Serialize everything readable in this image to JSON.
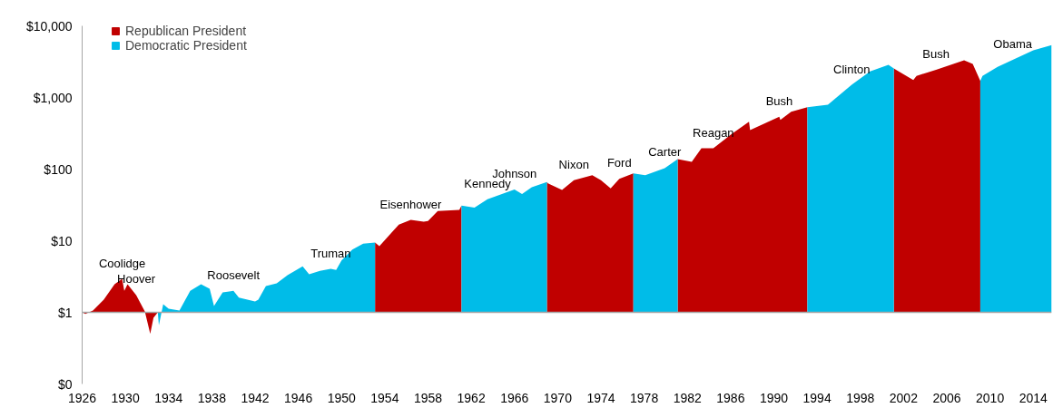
{
  "chart_data": {
    "type": "area",
    "log": "y",
    "grid": false,
    "legend": "top left",
    "xlim": [
      1926,
      2015.7
    ],
    "xticks": [
      1926,
      1930,
      1934,
      1938,
      1942,
      1946,
      1950,
      1954,
      1958,
      1962,
      1966,
      1970,
      1974,
      1978,
      1982,
      1986,
      1990,
      1994,
      1998,
      2002,
      2006,
      2010,
      2014
    ],
    "ylim": [
      0.1,
      10000
    ],
    "yticks": [
      {
        "value": 0.1,
        "label": "$0"
      },
      {
        "value": 1,
        "label": "$1"
      },
      {
        "value": 10,
        "label": "$10"
      },
      {
        "value": 100,
        "label": "$100"
      },
      {
        "value": 1000,
        "label": "$1,000"
      },
      {
        "value": 10000,
        "label": "$10,000"
      }
    ],
    "ref_lines": [
      {
        "axis": "y",
        "value": 1,
        "color": "#a6a6a6"
      }
    ],
    "series": [
      {
        "name": "Republican President",
        "color": "#c00000",
        "x": [
          1926,
          1926.3,
          1927,
          1928,
          1929,
          1929.7,
          1929.9,
          1930.2,
          1931,
          1931.8,
          1932.3,
          1932.6,
          1933.0,
          1933.2,
          1953.1,
          1953.5,
          1955.3,
          1956.4,
          1957.6,
          1958,
          1958.9,
          1960.9,
          1961.1,
          1961.2,
          1969.0,
          1969.1,
          1970.4,
          1971.5,
          1973.2,
          1974,
          1974.9,
          1975.7,
          1977,
          1977.1,
          1981.1,
          1982.4,
          1983.3,
          1984.4,
          1986.1,
          1987.7,
          1987.8,
          1990.5,
          1990.6,
          1991.6,
          1993.1,
          1993.2,
          2001.1,
          2001.3,
          2002.9,
          2003.2,
          2005,
          2007.6,
          2008.4,
          2009.1
        ],
        "values": [
          1.0,
          0.95,
          1.06,
          1.5,
          2.47,
          2.94,
          2.0,
          2.47,
          1.74,
          1.03,
          0.5,
          0.84,
          1.0,
          null,
          9.4,
          8.4,
          16.8,
          19.5,
          18.4,
          18.9,
          26,
          27,
          31,
          null,
          66,
          63,
          51,
          70,
          82,
          70,
          54,
          73,
          87,
          null,
          138,
          126,
          195,
          195,
          310,
          460,
          350,
          540,
          485,
          630,
          730,
          null,
          2550,
          2430,
          1750,
          2000,
          2430,
          3300,
          2950,
          1700
        ]
      },
      {
        "name": "Democratic President",
        "color": "#00bce8",
        "x": [
          1933.0,
          1933.1,
          1933.5,
          1934,
          1935,
          1936,
          1937,
          1937.8,
          1938.2,
          1939,
          1940,
          1940.5,
          1942,
          1942.3,
          1943,
          1944,
          1945,
          1946.4,
          1947,
          1948,
          1949,
          1949.5,
          1950,
          1951,
          1952,
          1953.1,
          1953.2,
          1961.1,
          1962.3,
          1963.5,
          1966,
          1966.7,
          1967.6,
          1969,
          1969.1,
          1977,
          1978.1,
          1979.9,
          1981.1,
          1981.2,
          1993.1,
          1995,
          1997.2,
          1998.9,
          2000.6,
          2001.1,
          2001.2,
          2009.1,
          2009.3,
          2010.7,
          2012.1,
          2014,
          2015.7
        ],
        "values": [
          1.0,
          0.66,
          1.3,
          1.12,
          1.06,
          2.0,
          2.47,
          2.13,
          1.23,
          1.9,
          2.0,
          1.6,
          1.42,
          1.5,
          2.33,
          2.54,
          3.3,
          4.4,
          3.4,
          3.8,
          4.05,
          3.9,
          5.3,
          7.5,
          9.1,
          9.4,
          null,
          31,
          29,
          38,
          52,
          45,
          56,
          66,
          null,
          87,
          82,
          103,
          138,
          null,
          730,
          790,
          1500,
          2320,
          2850,
          2550,
          null,
          1700,
          2000,
          2680,
          3350,
          4550,
          5400
        ]
      }
    ],
    "annotations": [
      {
        "text": "Coolidge",
        "x": 1929.7,
        "y": 2.94
      },
      {
        "text": "Hoover",
        "x": 1931,
        "y": 1.74
      },
      {
        "text": "Roosevelt",
        "x": 1940,
        "y": 2.0
      },
      {
        "text": "Truman",
        "x": 1949,
        "y": 4.05
      },
      {
        "text": "Eisenhower",
        "x": 1956.4,
        "y": 19.5
      },
      {
        "text": "Kennedy",
        "x": 1963.5,
        "y": 38
      },
      {
        "text": "Johnson",
        "x": 1966,
        "y": 52
      },
      {
        "text": "Nixon",
        "x": 1971.5,
        "y": 70
      },
      {
        "text": "Ford",
        "x": 1975.7,
        "y": 73
      },
      {
        "text": "Carter",
        "x": 1979.9,
        "y": 103
      },
      {
        "text": "Reagan",
        "x": 1984.4,
        "y": 195
      },
      {
        "text": "Bush",
        "x": 1990.5,
        "y": 540
      },
      {
        "text": "Clinton",
        "x": 1997.2,
        "y": 1500
      },
      {
        "text": "Bush",
        "x": 2005,
        "y": 2430
      },
      {
        "text": "Obama",
        "x": 2012.1,
        "y": 3350
      }
    ]
  }
}
